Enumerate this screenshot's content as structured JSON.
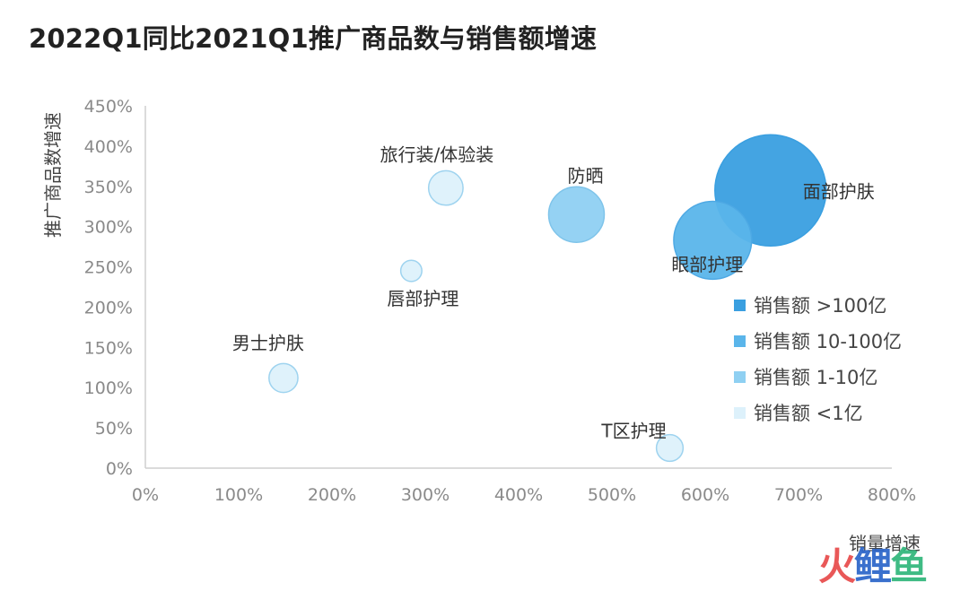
{
  "title": "2022Q1同比2021Q1推广商品数与销售额增速",
  "watermark": {
    "c1": "火",
    "c2": "鲤",
    "c3": "鱼"
  },
  "chart_data": {
    "type": "scatter",
    "xlabel": "销量增速",
    "ylabel": "推广商品数增速",
    "xlim": [
      0,
      800
    ],
    "ylim": [
      0,
      450
    ],
    "x_ticks": [
      "0%",
      "100%",
      "200%",
      "300%",
      "400%",
      "500%",
      "600%",
      "700%",
      "800%"
    ],
    "y_ticks": [
      "0%",
      "50%",
      "100%",
      "150%",
      "200%",
      "250%",
      "300%",
      "350%",
      "400%",
      "450%"
    ],
    "grid": false,
    "legend_position": "right",
    "legend": [
      {
        "label": "销售额  >100亿",
        "color": "#3a9fe0"
      },
      {
        "label": "销售额  10-100亿",
        "color": "#5ab5ea"
      },
      {
        "label": "销售额  1-10亿",
        "color": "#8fd0f2"
      },
      {
        "label": "销售额  <1亿",
        "color": "#ddf1fb"
      }
    ],
    "points": [
      {
        "name": "面部护肤",
        "x": 670,
        "y": 345,
        "tier": 0,
        "size": 1.0
      },
      {
        "name": "眼部护理",
        "x": 608,
        "y": 283,
        "tier": 1,
        "size": 0.7
      },
      {
        "name": "防晒",
        "x": 462,
        "y": 315,
        "tier": 2,
        "size": 0.5
      },
      {
        "name": "旅行装/体验装",
        "x": 322,
        "y": 348,
        "tier": 3,
        "size": 0.31
      },
      {
        "name": "唇部护理",
        "x": 285,
        "y": 245,
        "tier": 3,
        "size": 0.19
      },
      {
        "name": "男士护肤",
        "x": 148,
        "y": 112,
        "tier": 3,
        "size": 0.26
      },
      {
        "name": "T区护理",
        "x": 562,
        "y": 25,
        "tier": 3,
        "size": 0.24
      }
    ]
  }
}
